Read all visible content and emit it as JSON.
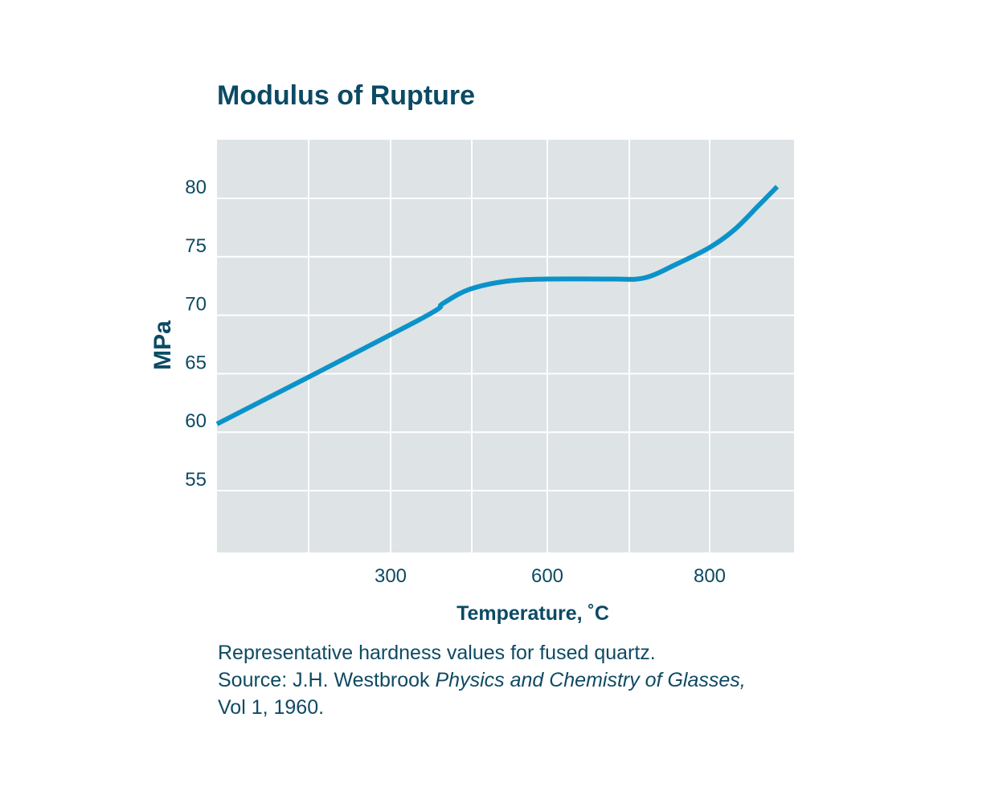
{
  "chart_data": {
    "type": "line",
    "title": "Modulus of Rupture",
    "xlabel": "Temperature, ˚C",
    "ylabel": "MPa",
    "x_ticks": [
      300,
      600,
      800
    ],
    "y_ticks": [
      55,
      60,
      65,
      70,
      75,
      80
    ],
    "grid": true,
    "series": [
      {
        "color": "#0b93c9",
        "points": [
          [
            0,
            60.7
          ],
          [
            350,
            69.5
          ],
          [
            400,
            71.0
          ],
          [
            450,
            72.2
          ],
          [
            520,
            72.9
          ],
          [
            600,
            73.1
          ],
          [
            680,
            73.1
          ],
          [
            720,
            73.2
          ],
          [
            760,
            74.4
          ],
          [
            800,
            75.8
          ],
          [
            840,
            77.3
          ],
          [
            880,
            79.4
          ],
          [
            910,
            81.0
          ]
        ]
      }
    ]
  },
  "caption": {
    "line1": "Representative hardness values for fused quartz.",
    "line2_prefix": "Source: J.H. Westbrook ",
    "line2_italic": "Physics and Chemistry of Glasses,",
    "line3": "Vol 1, 1960."
  },
  "colors": {
    "plot_background": "#dee3e6",
    "grid": "#ffffff",
    "line": "#0b93c9",
    "text": "#0e4a63"
  }
}
